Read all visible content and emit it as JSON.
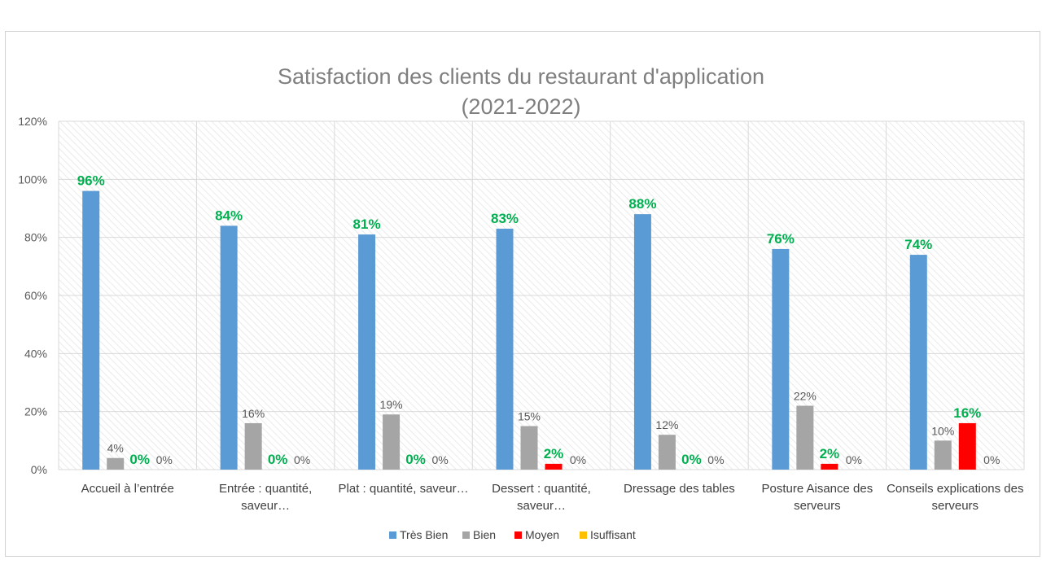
{
  "chart_data": {
    "type": "bar",
    "title_lines": [
      "Satisfaction des clients du restaurant d'application",
      "(2021-2022)"
    ],
    "categories": [
      [
        "Accueil à l’entrée"
      ],
      [
        "Entrée : quantité,",
        "saveur…"
      ],
      [
        "Plat : quantité, saveur…"
      ],
      [
        "Dessert : quantité,",
        "saveur…"
      ],
      [
        "Dressage des tables"
      ],
      [
        "Posture Aisance des",
        "serveurs"
      ],
      [
        "Conseils explications des",
        "serveurs"
      ]
    ],
    "series": [
      {
        "name": "Très Bien",
        "color": "#5b9bd5",
        "values": [
          96,
          84,
          81,
          83,
          88,
          76,
          74
        ],
        "labels": [
          "96%",
          "84%",
          "81%",
          "83%",
          "88%",
          "76%",
          "74%"
        ],
        "label_color": "#00b050",
        "label_bold": true
      },
      {
        "name": "Bien",
        "color": "#a5a5a5",
        "values": [
          4,
          16,
          19,
          15,
          12,
          22,
          10
        ],
        "labels": [
          "4%",
          "16%",
          "19%",
          "15%",
          "12%",
          "22%",
          "10%"
        ],
        "label_color": "#595959",
        "label_bold": false
      },
      {
        "name": "Moyen",
        "color": "#ff0000",
        "values": [
          0,
          0,
          0,
          2,
          0,
          2,
          16
        ],
        "labels": [
          "0%",
          "0%",
          "0%",
          "2%",
          "0%",
          "2%",
          "16%"
        ],
        "label_color": "#00b050",
        "label_bold": true
      },
      {
        "name": "Isuffisant",
        "color": "#ffc000",
        "values": [
          0,
          0,
          0,
          0,
          0,
          0,
          0
        ],
        "labels": [
          "0%",
          "0%",
          "0%",
          "0%",
          "0%",
          "0%",
          "0%"
        ],
        "label_color": "#595959",
        "label_bold": false
      }
    ],
    "y_ticks": [
      "0%",
      "20%",
      "40%",
      "60%",
      "80%",
      "100%",
      "120%"
    ],
    "ylim": [
      0,
      120
    ],
    "grid": true,
    "legend_position": "bottom"
  }
}
